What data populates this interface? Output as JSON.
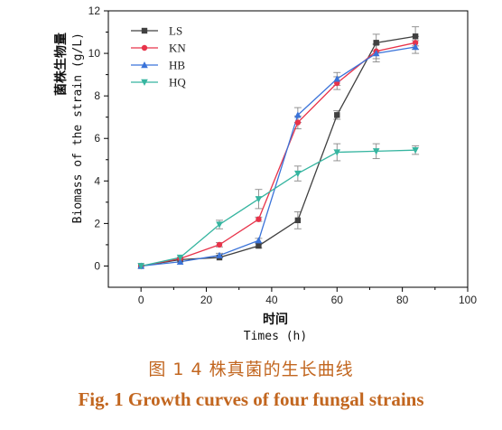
{
  "chart_data": {
    "type": "line",
    "x": [
      0,
      12,
      24,
      36,
      48,
      60,
      72,
      84
    ],
    "series": [
      {
        "name": "LS",
        "color": "#404040",
        "marker": "square",
        "values": [
          0.0,
          0.3,
          0.4,
          0.95,
          2.15,
          7.1,
          10.5,
          10.8
        ],
        "errors": [
          0.05,
          0.05,
          0.05,
          0.1,
          0.4,
          0.2,
          0.4,
          0.45
        ]
      },
      {
        "name": "KN",
        "color": "#e8334a",
        "marker": "circle",
        "values": [
          0.0,
          0.35,
          1.0,
          2.2,
          6.75,
          8.6,
          10.1,
          10.5
        ],
        "errors": [
          0.05,
          0.05,
          0.1,
          0.1,
          0.3,
          0.3,
          0.35,
          0.3
        ]
      },
      {
        "name": "HB",
        "color": "#3a73d9",
        "marker": "triangle-up",
        "values": [
          0.0,
          0.2,
          0.5,
          1.2,
          7.1,
          8.8,
          10.0,
          10.3
        ],
        "errors": [
          0.05,
          0.05,
          0.1,
          0.1,
          0.35,
          0.3,
          0.4,
          0.3
        ]
      },
      {
        "name": "HQ",
        "color": "#36b5a0",
        "marker": "triangle-down",
        "values": [
          0.0,
          0.4,
          1.95,
          3.15,
          4.35,
          5.35,
          5.4,
          5.45
        ],
        "errors": [
          0.05,
          0.05,
          0.2,
          0.45,
          0.35,
          0.4,
          0.35,
          0.2
        ]
      }
    ],
    "xlim": [
      -10,
      100
    ],
    "ylim": [
      -1,
      12
    ],
    "xticks": [
      0,
      20,
      40,
      60,
      80,
      100
    ],
    "yticks": [
      0,
      2,
      4,
      6,
      8,
      10,
      12
    ],
    "xlabel_cn": "时间",
    "xlabel": "Times  (h)",
    "ylabel_cn": "菌株生物量",
    "ylabel": "Biomass of the strain  (g/L)",
    "legend_position": "top-left",
    "grid": false,
    "error_bars": true
  },
  "caption": {
    "cn": "图 1   4 株真菌的生长曲线",
    "en": "Fig. 1    Growth curves of four fungal strains",
    "color": "#c2661f"
  }
}
